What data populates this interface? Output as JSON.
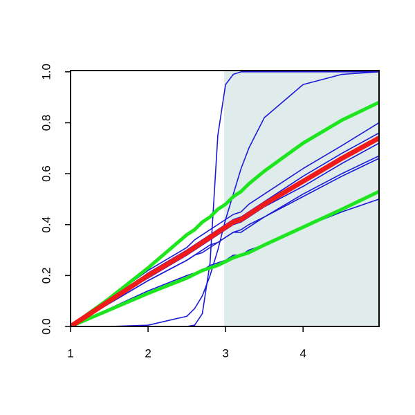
{
  "chart_data": {
    "type": "line",
    "xlim": [
      1,
      4.98
    ],
    "ylim": [
      0,
      1.005
    ],
    "xticks": [
      1,
      2,
      3,
      4
    ],
    "yticks": [
      {
        "value": 0,
        "label": "0.0"
      },
      0.2,
      0.4,
      0.6,
      0.8,
      {
        "value": 1,
        "label": "1.0"
      }
    ],
    "shaded_region": {
      "x": [
        2.98,
        4.98
      ],
      "color": "#e0ecec"
    },
    "x": [
      1,
      1.5,
      2,
      2.5,
      2.6,
      2.7,
      2.8,
      2.9,
      3,
      3.1,
      3.2,
      3.3,
      3.5,
      4,
      4.5,
      4.98
    ],
    "series": [
      {
        "color": "#1a1ad6",
        "width": 1.6,
        "values": [
          0,
          0,
          0,
          0,
          0.005,
          0.05,
          0.25,
          0.75,
          0.95,
          0.99,
          1,
          1,
          1,
          1,
          1,
          1
        ]
      },
      {
        "color": "#1a1ad6",
        "width": 1.6,
        "values": [
          0,
          0,
          0.005,
          0.04,
          0.07,
          0.12,
          0.2,
          0.3,
          0.42,
          0.52,
          0.62,
          0.7,
          0.82,
          0.95,
          0.99,
          1
        ]
      },
      {
        "color": "#1a1ad6",
        "width": 1.6,
        "values": [
          0,
          0.11,
          0.22,
          0.31,
          0.34,
          0.36,
          0.38,
          0.4,
          0.42,
          0.44,
          0.45,
          0.48,
          0.52,
          0.62,
          0.71,
          0.8
        ]
      },
      {
        "color": "#1a1ad6",
        "width": 1.6,
        "values": [
          0,
          0.1,
          0.21,
          0.3,
          0.32,
          0.34,
          0.36,
          0.38,
          0.4,
          0.42,
          0.43,
          0.45,
          0.49,
          0.59,
          0.68,
          0.76
        ]
      },
      {
        "color": "#1a1ad6",
        "width": 1.6,
        "values": [
          0,
          0.1,
          0.19,
          0.28,
          0.3,
          0.32,
          0.34,
          0.36,
          0.38,
          0.4,
          0.41,
          0.43,
          0.47,
          0.55,
          0.64,
          0.72
        ]
      },
      {
        "color": "#1a1ad6",
        "width": 1.6,
        "values": [
          0,
          0.09,
          0.18,
          0.26,
          0.28,
          0.3,
          0.32,
          0.33,
          0.35,
          0.37,
          0.38,
          0.4,
          0.43,
          0.52,
          0.6,
          0.67
        ]
      },
      {
        "color": "#1a1ad6",
        "width": 1.6,
        "values": [
          0,
          0.09,
          0.18,
          0.26,
          0.28,
          0.29,
          0.31,
          0.33,
          0.35,
          0.37,
          0.37,
          0.39,
          0.43,
          0.51,
          0.59,
          0.66
        ]
      },
      {
        "color": "#1a1ad6",
        "width": 1.6,
        "values": [
          0,
          0.07,
          0.14,
          0.2,
          0.21,
          0.22,
          0.24,
          0.25,
          0.26,
          0.28,
          0.28,
          0.3,
          0.32,
          0.39,
          0.45,
          0.5
        ]
      },
      {
        "color": "#1ee61e",
        "width": 5,
        "values": [
          0,
          0.11,
          0.23,
          0.36,
          0.38,
          0.41,
          0.43,
          0.46,
          0.48,
          0.51,
          0.53,
          0.56,
          0.61,
          0.72,
          0.81,
          0.88
        ]
      },
      {
        "color": "#1ee61e",
        "width": 5,
        "values": [
          0,
          0.065,
          0.13,
          0.19,
          0.205,
          0.22,
          0.23,
          0.24,
          0.255,
          0.27,
          0.28,
          0.29,
          0.32,
          0.39,
          0.46,
          0.53
        ]
      },
      {
        "color": "#f01a1a",
        "width": 7,
        "values": [
          0,
          0.1,
          0.2,
          0.29,
          0.31,
          0.33,
          0.35,
          0.37,
          0.39,
          0.41,
          0.42,
          0.44,
          0.48,
          0.57,
          0.66,
          0.74
        ]
      }
    ]
  }
}
